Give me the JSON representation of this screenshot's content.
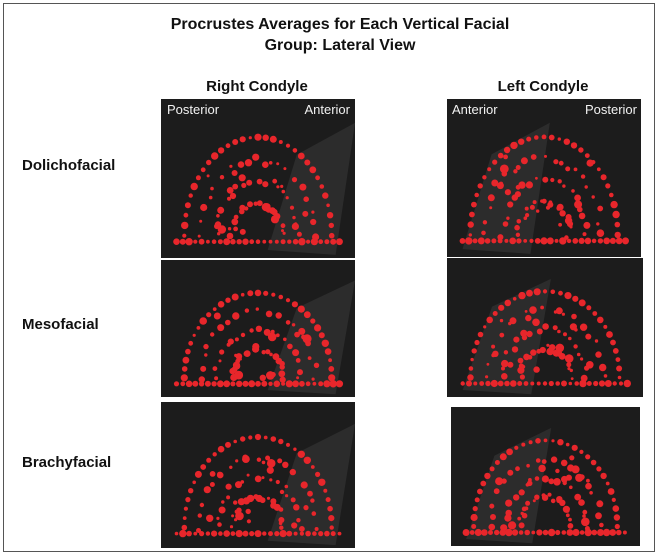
{
  "title_line1": "Procrustes Averages for Each Vertical Facial",
  "title_line2": "Group: Lateral View",
  "columns": [
    {
      "label": "Right Condyle",
      "orientation_left": "Posterior",
      "orientation_right": "Anterior"
    },
    {
      "label": "Left Condyle",
      "orientation_left": "Anterior",
      "orientation_right": "Posterior"
    }
  ],
  "rows": [
    {
      "label": "Dolichofacial"
    },
    {
      "label": "Mesofacial"
    },
    {
      "label": "Brachyfacial"
    }
  ],
  "colors": {
    "landmark": "#e8262b",
    "panel_background": "#1c1c1c",
    "plane": "#3a3a3a"
  },
  "marker": "landmark-sphere"
}
